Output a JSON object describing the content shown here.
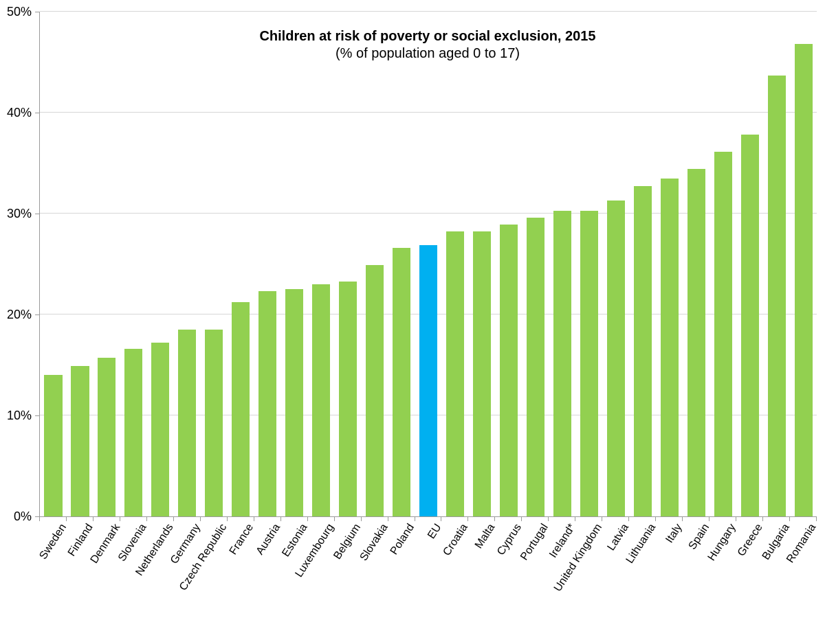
{
  "chart_data": {
    "type": "bar",
    "title": "Children at risk of poverty or social exclusion, 2015",
    "subtitle": "(% of population aged 0 to 17)",
    "xlabel": "",
    "ylabel": "",
    "ylim": [
      0,
      50
    ],
    "ytick_values": [
      0,
      10,
      20,
      30,
      40,
      50
    ],
    "ytick_labels": [
      "0%",
      "10%",
      "20%",
      "30%",
      "40%",
      "50%"
    ],
    "grid": "horizontal",
    "legend": "none",
    "categories": [
      "Sweden",
      "Finland",
      "Denmark",
      "Slovenia",
      "Netherlands",
      "Germany",
      "Czech Republic",
      "France",
      "Austria",
      "Estonia",
      "Luxembourg",
      "Belgium",
      "Slovakia",
      "Poland",
      "EU",
      "Croatia",
      "Malta",
      "Cyprus",
      "Portugal",
      "Ireland*",
      "United Kingdom",
      "Latvia",
      "Lithuania",
      "Italy",
      "Spain",
      "Hungary",
      "Greece",
      "Bulgaria",
      "Romania"
    ],
    "values": [
      14.0,
      14.9,
      15.7,
      16.6,
      17.2,
      18.5,
      18.5,
      21.2,
      22.3,
      22.5,
      23.0,
      23.3,
      24.9,
      26.6,
      26.9,
      28.2,
      28.2,
      28.9,
      29.6,
      30.3,
      30.3,
      31.3,
      32.7,
      33.5,
      34.4,
      36.1,
      37.8,
      43.7,
      46.8
    ],
    "highlight_category": "EU",
    "colors": {
      "bar": "#92D050",
      "highlight": "#00B0F0",
      "gridline": "#D6D6D6",
      "axis": "#9A9A9A",
      "text": "#000000"
    }
  }
}
